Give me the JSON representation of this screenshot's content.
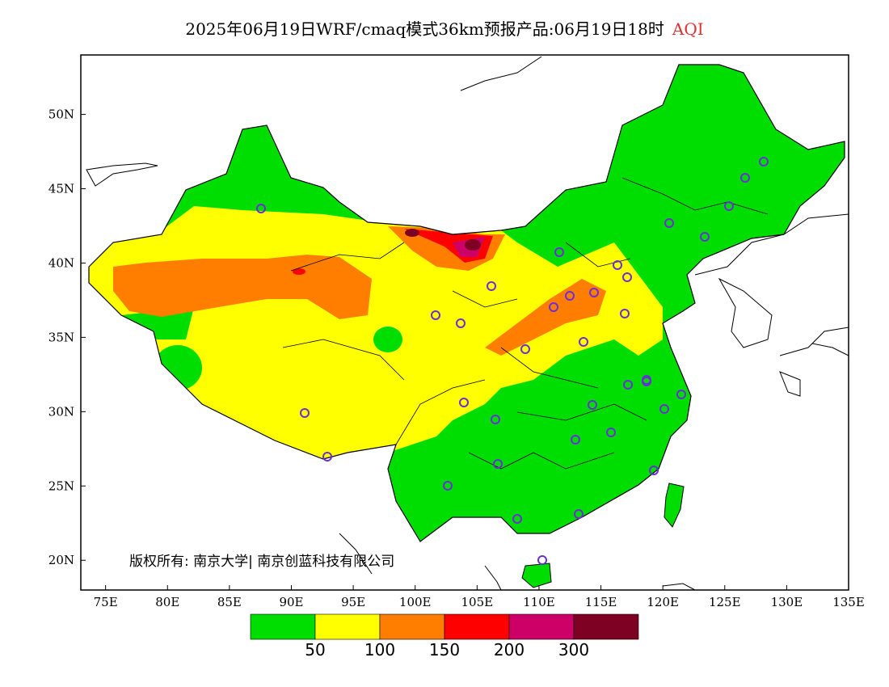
{
  "header": {
    "title": "2025年06月19日WRF/cmaq模式36km预报产品:06月19日18时",
    "variable": "AQI"
  },
  "map": {
    "lon_range": [
      73,
      135
    ],
    "lat_range": [
      18,
      54
    ],
    "x_ticks": [
      "75E",
      "80E",
      "85E",
      "90E",
      "95E",
      "100E",
      "105E",
      "110E",
      "115E",
      "120E",
      "125E",
      "130E",
      "135E"
    ],
    "y_ticks": [
      "20N",
      "25N",
      "30N",
      "35N",
      "40N",
      "45N",
      "50N"
    ],
    "background_color": "#ffffff",
    "coastline_color": "#000000"
  },
  "copyright": "版权所有: 南京大学| 南京创蓝科技有限公司",
  "legend": {
    "colors": [
      "#00dd00",
      "#ffff00",
      "#ff7e00",
      "#ff0000",
      "#cc0066",
      "#7e0023"
    ],
    "labels": [
      "50",
      "100",
      "150",
      "200",
      "300"
    ]
  },
  "stations": {
    "marker_color": "#6a2fd6",
    "count": 36
  }
}
